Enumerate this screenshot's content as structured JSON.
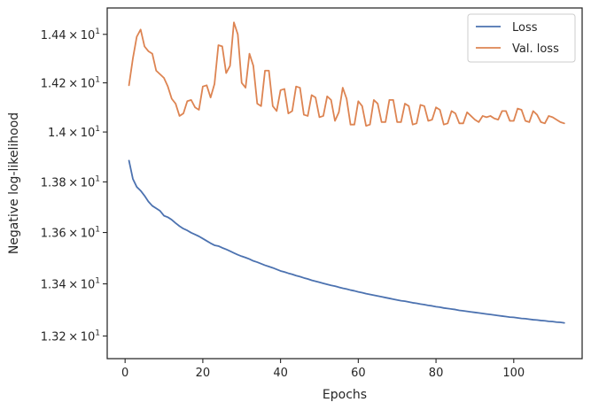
{
  "chart_data": {
    "type": "line",
    "xlabel": "Epochs",
    "ylabel": "Negative log-likelihood",
    "xlim": [
      -4.6,
      117.6
    ],
    "ylim": [
      13.114,
      14.51
    ],
    "x_scale": "linear",
    "y_scale": "log",
    "grid": false,
    "legend_position": "top-right",
    "x_ticks": [
      0,
      20,
      40,
      60,
      80,
      100
    ],
    "x_tick_labels": [
      "0",
      "20",
      "40",
      "60",
      "80",
      "100"
    ],
    "y_ticks": [
      13.2,
      13.4,
      13.6,
      13.8,
      14.0,
      14.2,
      14.4
    ],
    "y_tick_labels": [
      {
        "mantissa": "1.32",
        "times": "×",
        "base": "10",
        "exp": "1"
      },
      {
        "mantissa": "1.34",
        "times": "×",
        "base": "10",
        "exp": "1"
      },
      {
        "mantissa": "1.36",
        "times": "×",
        "base": "10",
        "exp": "1"
      },
      {
        "mantissa": "1.38",
        "times": "×",
        "base": "10",
        "exp": "1"
      },
      {
        "mantissa": "1.4",
        "times": "×",
        "base": "10",
        "exp": "1"
      },
      {
        "mantissa": "1.42",
        "times": "×",
        "base": "10",
        "exp": "1"
      },
      {
        "mantissa": "1.44",
        "times": "×",
        "base": "10",
        "exp": "1"
      }
    ],
    "series": [
      {
        "name": "Loss",
        "color": "#4c72b0",
        "x": [
          1,
          2,
          3,
          4,
          5,
          6,
          7,
          8,
          9,
          10,
          11,
          12,
          13,
          14,
          15,
          16,
          17,
          18,
          19,
          20,
          21,
          22,
          23,
          24,
          25,
          26,
          27,
          28,
          29,
          30,
          31,
          32,
          33,
          34,
          35,
          36,
          37,
          38,
          39,
          40,
          41,
          42,
          43,
          44,
          45,
          46,
          47,
          48,
          49,
          50,
          51,
          52,
          53,
          54,
          55,
          56,
          57,
          58,
          59,
          60,
          61,
          62,
          63,
          64,
          65,
          66,
          67,
          68,
          69,
          70,
          71,
          72,
          73,
          74,
          75,
          76,
          77,
          78,
          79,
          80,
          81,
          82,
          83,
          84,
          85,
          86,
          87,
          88,
          89,
          90,
          91,
          92,
          93,
          94,
          95,
          96,
          97,
          98,
          99,
          100,
          101,
          102,
          103,
          104,
          105,
          106,
          107,
          108,
          109,
          110,
          111,
          112,
          113
        ],
        "y": [
          13.885,
          13.812,
          13.78,
          13.765,
          13.745,
          13.722,
          13.705,
          13.695,
          13.685,
          13.666,
          13.66,
          13.65,
          13.637,
          13.625,
          13.615,
          13.608,
          13.599,
          13.592,
          13.585,
          13.576,
          13.567,
          13.558,
          13.55,
          13.547,
          13.54,
          13.534,
          13.527,
          13.52,
          13.513,
          13.507,
          13.502,
          13.496,
          13.489,
          13.484,
          13.478,
          13.472,
          13.467,
          13.462,
          13.456,
          13.45,
          13.446,
          13.441,
          13.437,
          13.432,
          13.428,
          13.423,
          13.419,
          13.414,
          13.41,
          13.406,
          13.402,
          13.398,
          13.394,
          13.391,
          13.387,
          13.383,
          13.38,
          13.376,
          13.373,
          13.369,
          13.366,
          13.362,
          13.359,
          13.356,
          13.353,
          13.35,
          13.347,
          13.344,
          13.341,
          13.338,
          13.335,
          13.333,
          13.33,
          13.327,
          13.325,
          13.322,
          13.32,
          13.317,
          13.315,
          13.312,
          13.31,
          13.307,
          13.305,
          13.303,
          13.301,
          13.298,
          13.296,
          13.294,
          13.292,
          13.29,
          13.288,
          13.286,
          13.284,
          13.282,
          13.28,
          13.278,
          13.276,
          13.274,
          13.272,
          13.271,
          13.269,
          13.267,
          13.266,
          13.264,
          13.262,
          13.261,
          13.259,
          13.258,
          13.256,
          13.255,
          13.253,
          13.252,
          13.25
        ]
      },
      {
        "name": "Val. loss",
        "color": "#dd8452",
        "x": [
          1,
          2,
          3,
          4,
          5,
          6,
          7,
          8,
          9,
          10,
          11,
          12,
          13,
          14,
          15,
          16,
          17,
          18,
          19,
          20,
          21,
          22,
          23,
          24,
          25,
          26,
          27,
          28,
          29,
          30,
          31,
          32,
          33,
          34,
          35,
          36,
          37,
          38,
          39,
          40,
          41,
          42,
          43,
          44,
          45,
          46,
          47,
          48,
          49,
          50,
          51,
          52,
          53,
          54,
          55,
          56,
          57,
          58,
          59,
          60,
          61,
          62,
          63,
          64,
          65,
          66,
          67,
          68,
          69,
          70,
          71,
          72,
          73,
          74,
          75,
          76,
          77,
          78,
          79,
          80,
          81,
          82,
          83,
          84,
          85,
          86,
          87,
          88,
          89,
          90,
          91,
          92,
          93,
          94,
          95,
          96,
          97,
          98,
          99,
          100,
          101,
          102,
          103,
          104,
          105,
          106,
          107,
          108,
          109,
          110,
          111,
          112,
          113
        ],
        "y": [
          14.19,
          14.3,
          14.39,
          14.42,
          14.35,
          14.33,
          14.32,
          14.25,
          14.235,
          14.22,
          14.185,
          14.135,
          14.115,
          14.065,
          14.075,
          14.125,
          14.13,
          14.1,
          14.09,
          14.185,
          14.19,
          14.14,
          14.195,
          14.355,
          14.35,
          14.24,
          14.27,
          14.45,
          14.4,
          14.2,
          14.18,
          14.32,
          14.27,
          14.115,
          14.105,
          14.25,
          14.25,
          14.105,
          14.085,
          14.17,
          14.175,
          14.075,
          14.085,
          14.185,
          14.18,
          14.07,
          14.065,
          14.15,
          14.14,
          14.06,
          14.065,
          14.145,
          14.13,
          14.045,
          14.08,
          14.18,
          14.135,
          14.03,
          14.03,
          14.125,
          14.105,
          14.025,
          14.03,
          14.13,
          14.115,
          14.04,
          14.04,
          14.13,
          14.13,
          14.04,
          14.04,
          14.115,
          14.105,
          14.03,
          14.035,
          14.11,
          14.105,
          14.045,
          14.05,
          14.1,
          14.09,
          14.03,
          14.035,
          14.085,
          14.075,
          14.035,
          14.035,
          14.08,
          14.065,
          14.05,
          14.04,
          14.065,
          14.06,
          14.065,
          14.055,
          14.05,
          14.085,
          14.085,
          14.045,
          14.045,
          14.095,
          14.09,
          14.045,
          14.04,
          14.085,
          14.07,
          14.04,
          14.035,
          14.065,
          14.06,
          14.05,
          14.04,
          14.035
        ]
      }
    ]
  }
}
